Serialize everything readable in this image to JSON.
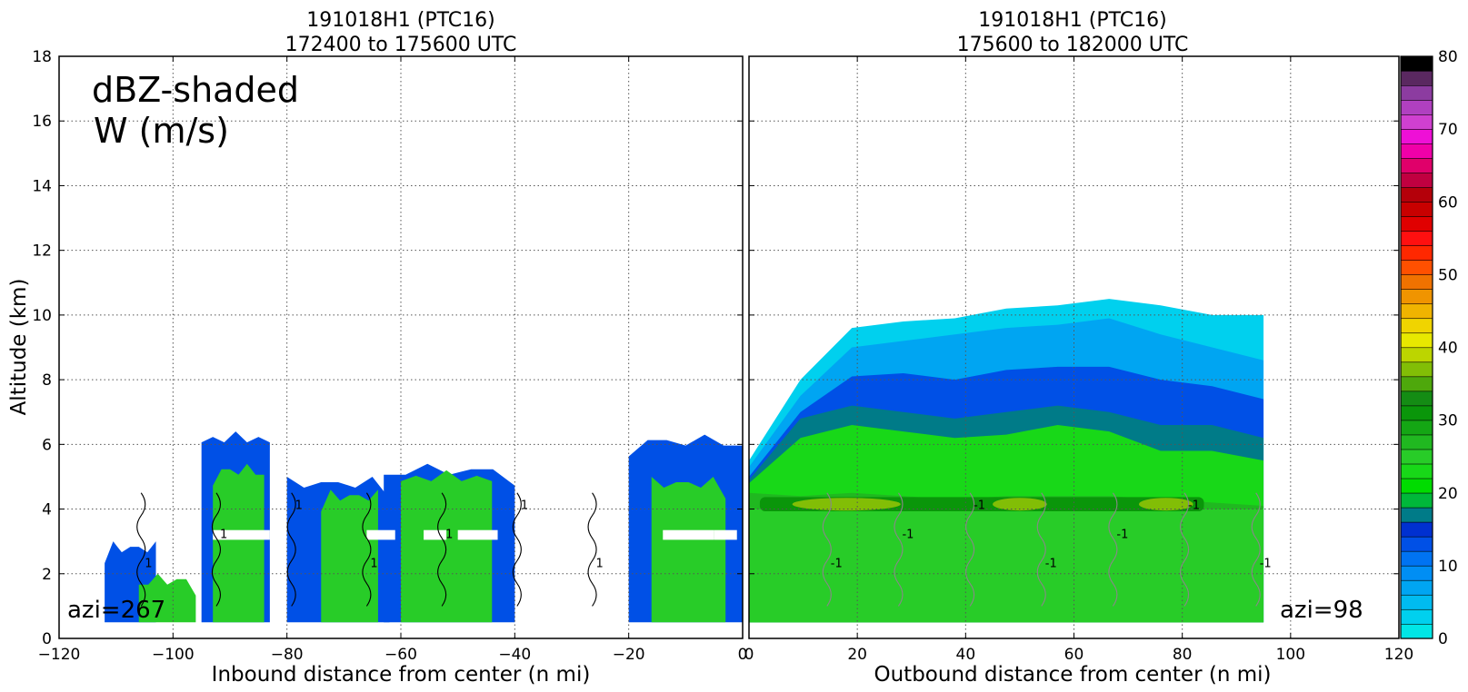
{
  "chart_data": [
    {
      "type": "heatmap",
      "title_line1": "191018H1 (PTC16)",
      "title_line2": "172400 to 175600 UTC",
      "xlabel": "Inbound distance from center (n mi)",
      "ylabel": "Altitude (km)",
      "xlim": [
        -120,
        0
      ],
      "ylim": [
        0,
        18
      ],
      "xticks": [
        -120,
        -100,
        -80,
        -60,
        -40,
        -20,
        0
      ],
      "yticks": [
        0,
        2,
        4,
        6,
        8,
        10,
        12,
        14,
        16,
        18
      ],
      "grid": true,
      "annotation_line1": "dBZ-shaded",
      "annotation_line2": "W (m/s)",
      "azimuth_label": "azi=267",
      "contour_label": "1",
      "echo_blobs": [
        {
          "x0": -112,
          "x1": -103,
          "top": 3.0,
          "dbz": 12
        },
        {
          "x0": -106,
          "x1": -96,
          "top": 2.0,
          "dbz": 24
        },
        {
          "x0": -95,
          "x1": -83,
          "top": 6.4,
          "dbz": 12
        },
        {
          "x0": -93,
          "x1": -84,
          "top": 5.4,
          "dbz": 24
        },
        {
          "x0": -80,
          "x1": -62,
          "top": 5.0,
          "dbz": 12
        },
        {
          "x0": -74,
          "x1": -64,
          "top": 4.6,
          "dbz": 24
        },
        {
          "x0": -63,
          "x1": -40,
          "top": 5.4,
          "dbz": 12
        },
        {
          "x0": -60,
          "x1": -44,
          "top": 5.2,
          "dbz": 24
        },
        {
          "x0": -20,
          "x1": 0,
          "top": 6.3,
          "dbz": 12
        },
        {
          "x0": -16,
          "x1": -3,
          "top": 5.0,
          "dbz": 24
        }
      ]
    },
    {
      "type": "heatmap",
      "title_line1": "191018H1 (PTC16)",
      "title_line2": "175600 to 182000 UTC",
      "xlabel": "Outbound distance from center (n mi)",
      "ylabel": "",
      "xlim": [
        0,
        120
      ],
      "ylim": [
        0,
        18
      ],
      "xticks": [
        0,
        20,
        40,
        60,
        80,
        100,
        120
      ],
      "yticks": [
        0,
        2,
        4,
        6,
        8,
        10,
        12,
        14,
        16,
        18
      ],
      "grid": true,
      "azimuth_label": "azi=98",
      "contour_label": "-1",
      "echo_region": {
        "x0": 0,
        "x1": 95,
        "bottom": 0.5
      },
      "layers": [
        {
          "dbz": 2,
          "top": [
            5.5,
            8.0,
            9.6,
            9.8,
            9.9,
            10.2,
            10.3,
            10.5,
            10.3,
            10.0,
            10.0
          ]
        },
        {
          "dbz": 6,
          "top": [
            5.3,
            7.5,
            9.0,
            9.2,
            9.4,
            9.6,
            9.7,
            9.9,
            9.4,
            9.0,
            8.6
          ]
        },
        {
          "dbz": 12,
          "top": [
            5.0,
            7.0,
            8.1,
            8.2,
            8.0,
            8.3,
            8.4,
            8.4,
            8.0,
            7.8,
            7.4
          ]
        },
        {
          "dbz": 16,
          "top": [
            4.9,
            6.8,
            7.2,
            7.0,
            6.8,
            7.0,
            7.2,
            7.0,
            6.6,
            6.6,
            6.2
          ]
        },
        {
          "dbz": 22,
          "top": [
            4.8,
            6.2,
            6.6,
            6.4,
            6.2,
            6.3,
            6.6,
            6.4,
            5.8,
            5.8,
            5.5
          ]
        },
        {
          "dbz": 26,
          "top": [
            4.5,
            4.4,
            4.5,
            4.4,
            4.3,
            4.4,
            4.4,
            4.4,
            4.3,
            4.2,
            4.1
          ]
        }
      ],
      "bright_band": {
        "altitude": 4.15,
        "x0": 2,
        "x1": 84,
        "dbz": 36
      }
    }
  ],
  "colorbar": {
    "min": 0,
    "max": 80,
    "ticks": [
      0,
      10,
      20,
      30,
      40,
      50,
      60,
      70,
      80
    ],
    "colors": [
      "#00e6e6",
      "#00d0ee",
      "#00bbf0",
      "#00a5f2",
      "#008ef4",
      "#0073f2",
      "#0050e6",
      "#0030d0",
      "#007b88",
      "#00b83a",
      "#00dc00",
      "#18d818",
      "#28cc28",
      "#20b820",
      "#14a614",
      "#0a960a",
      "#148c14",
      "#4ea80c",
      "#82be06",
      "#bcd500",
      "#e8e800",
      "#f0d400",
      "#f0b400",
      "#f09400",
      "#f07200",
      "#ff5000",
      "#ff2800",
      "#ff1010",
      "#e00000",
      "#c80000",
      "#b4000a",
      "#c00040",
      "#e0006a",
      "#f000a8",
      "#ee10d6",
      "#d040d0",
      "#b040c0",
      "#8c3ca0",
      "#5a2860",
      "#000000"
    ]
  }
}
